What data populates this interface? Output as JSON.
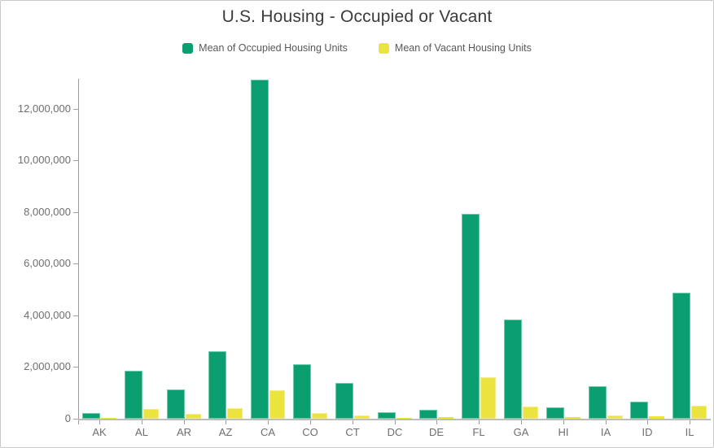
{
  "chart_data": {
    "type": "bar",
    "title": "U.S. Housing - Occupied or Vacant",
    "categories": [
      "AK",
      "AL",
      "AR",
      "AZ",
      "CA",
      "CO",
      "CT",
      "DC",
      "DE",
      "FL",
      "GA",
      "HI",
      "IA",
      "ID",
      "IL"
    ],
    "series": [
      {
        "name": "Mean of Occupied Housing Units",
        "key": "occupied",
        "color": "#0b9e70",
        "border_color": "#6fcaa8",
        "values": [
          230000,
          1870000,
          1140000,
          2620000,
          13130000,
          2120000,
          1370000,
          265000,
          340000,
          7940000,
          3830000,
          440000,
          1270000,
          650000,
          4880000
        ]
      },
      {
        "name": "Mean of Vacant Housing Units",
        "key": "vacant",
        "color": "#ebe33e",
        "border_color": "#f3eb8e",
        "values": [
          45000,
          380000,
          180000,
          400000,
          1090000,
          220000,
          140000,
          30000,
          55000,
          1610000,
          480000,
          75000,
          125000,
          95000,
          490000
        ]
      }
    ],
    "xlabel": "",
    "ylabel": "",
    "ylim": [
      0,
      13160000
    ],
    "yticks": [
      0,
      2000000,
      4000000,
      6000000,
      8000000,
      10000000,
      12000000
    ],
    "ytick_labels": [
      "0",
      "2,000,000",
      "4,000,000",
      "6,000,000",
      "8,000,000",
      "10,000,000",
      "12,000,000"
    ],
    "legend_position": "top",
    "grid": false
  }
}
